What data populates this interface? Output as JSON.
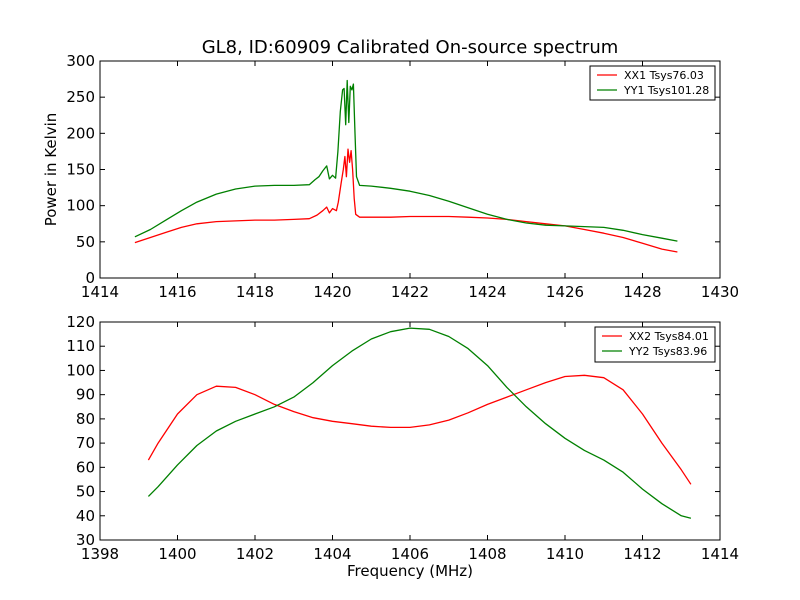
{
  "figure": {
    "title": "GL8, ID:60909 Calibrated On-source spectrum"
  },
  "chart_data": [
    {
      "type": "line",
      "ylabel": "Power in Kelvin",
      "xlabel": "",
      "xlim": [
        1414,
        1430
      ],
      "ylim": [
        0,
        300
      ],
      "xticks": [
        1414,
        1416,
        1418,
        1420,
        1422,
        1424,
        1426,
        1428,
        1430
      ],
      "yticks": [
        0,
        50,
        100,
        150,
        200,
        250,
        300
      ],
      "legend_position": "top-right",
      "grid": false,
      "series": [
        {
          "name": "XX1 Tsys76.03",
          "color": "#ff0000",
          "x": [
            1414.9,
            1415.3,
            1415.7,
            1416.1,
            1416.5,
            1417.0,
            1417.5,
            1418.0,
            1418.5,
            1419.0,
            1419.4,
            1419.6,
            1419.75,
            1419.85,
            1419.92,
            1420.0,
            1420.1,
            1420.15,
            1420.22,
            1420.28,
            1420.32,
            1420.36,
            1420.4,
            1420.44,
            1420.48,
            1420.52,
            1420.56,
            1420.6,
            1420.7,
            1421.0,
            1421.5,
            1422.0,
            1422.5,
            1423.0,
            1423.5,
            1424.0,
            1424.5,
            1425.0,
            1425.5,
            1426.0,
            1426.5,
            1427.0,
            1427.5,
            1428.0,
            1428.5,
            1428.9
          ],
          "y": [
            49,
            56,
            63,
            70,
            75,
            78,
            79,
            80,
            80,
            81,
            82,
            87,
            93,
            98,
            90,
            96,
            93,
            105,
            130,
            150,
            168,
            140,
            178,
            160,
            176,
            150,
            110,
            88,
            84,
            84,
            84,
            85,
            85,
            85,
            84,
            83,
            81,
            78,
            75,
            72,
            67,
            62,
            56,
            48,
            40,
            36
          ]
        },
        {
          "name": "YY1 Tsys101.28",
          "color": "#008000",
          "x": [
            1414.9,
            1415.3,
            1415.7,
            1416.1,
            1416.5,
            1417.0,
            1417.5,
            1418.0,
            1418.5,
            1419.0,
            1419.4,
            1419.55,
            1419.65,
            1419.75,
            1419.85,
            1419.92,
            1420.0,
            1420.08,
            1420.14,
            1420.2,
            1420.26,
            1420.3,
            1420.34,
            1420.38,
            1420.42,
            1420.46,
            1420.5,
            1420.54,
            1420.58,
            1420.62,
            1420.7,
            1421.0,
            1421.5,
            1422.0,
            1422.5,
            1423.0,
            1423.5,
            1424.0,
            1424.5,
            1425.0,
            1425.5,
            1426.0,
            1426.5,
            1427.0,
            1427.5,
            1428.0,
            1428.5,
            1428.9
          ],
          "y": [
            57,
            67,
            80,
            93,
            105,
            116,
            123,
            127,
            128,
            128,
            129,
            136,
            140,
            148,
            155,
            137,
            142,
            138,
            175,
            230,
            260,
            262,
            212,
            273,
            215,
            265,
            260,
            268,
            200,
            140,
            128,
            127,
            124,
            120,
            114,
            106,
            97,
            88,
            81,
            76,
            73,
            72,
            71,
            70,
            66,
            60,
            55,
            51
          ]
        }
      ]
    },
    {
      "type": "line",
      "xlabel": "Frequency (MHz)",
      "ylabel": "",
      "xlim": [
        1398,
        1414
      ],
      "ylim": [
        30,
        120
      ],
      "xticks": [
        1398,
        1400,
        1402,
        1404,
        1406,
        1408,
        1410,
        1412,
        1414
      ],
      "yticks": [
        30,
        40,
        50,
        60,
        70,
        80,
        90,
        100,
        110,
        120
      ],
      "legend_position": "top-right",
      "grid": false,
      "series": [
        {
          "name": "XX2 Tsys84.01",
          "color": "#ff0000",
          "x": [
            1399.25,
            1399.5,
            1400.0,
            1400.5,
            1401.0,
            1401.5,
            1402.0,
            1402.5,
            1403.0,
            1403.5,
            1404.0,
            1404.5,
            1405.0,
            1405.5,
            1406.0,
            1406.5,
            1407.0,
            1407.5,
            1408.0,
            1408.5,
            1409.0,
            1409.5,
            1410.0,
            1410.5,
            1411.0,
            1411.5,
            1412.0,
            1412.5,
            1413.0,
            1413.25
          ],
          "y": [
            63,
            70,
            82,
            90,
            93.5,
            93,
            90,
            86,
            83,
            80.5,
            79,
            78,
            77,
            76.5,
            76.5,
            77.5,
            79.5,
            82.5,
            86,
            89,
            92,
            95,
            97.5,
            98,
            97,
            92,
            82,
            70,
            59,
            53
          ]
        },
        {
          "name": "YY2 Tsys83.96",
          "color": "#008000",
          "x": [
            1399.25,
            1399.5,
            1400.0,
            1400.5,
            1401.0,
            1401.5,
            1402.0,
            1402.5,
            1403.0,
            1403.5,
            1404.0,
            1404.5,
            1405.0,
            1405.5,
            1406.0,
            1406.5,
            1407.0,
            1407.5,
            1408.0,
            1408.5,
            1409.0,
            1409.5,
            1410.0,
            1410.5,
            1411.0,
            1411.5,
            1412.0,
            1412.5,
            1413.0,
            1413.25
          ],
          "y": [
            48,
            52,
            61,
            69,
            75,
            79,
            82,
            85,
            89,
            95,
            102,
            108,
            113,
            116,
            117.5,
            117,
            114,
            109,
            102,
            93,
            85,
            78,
            72,
            67,
            63,
            58,
            51,
            45,
            40,
            39
          ]
        }
      ]
    }
  ]
}
